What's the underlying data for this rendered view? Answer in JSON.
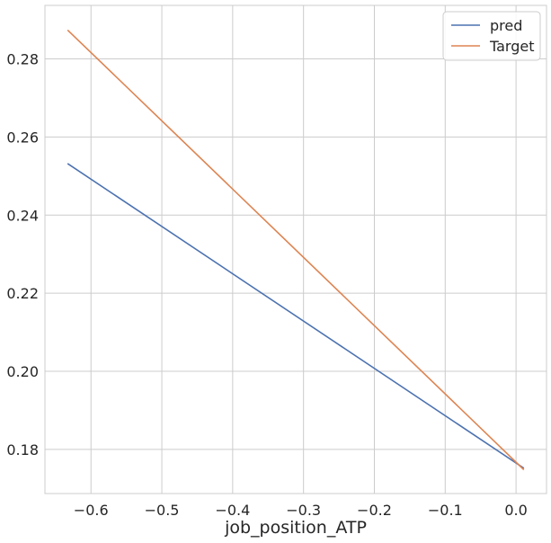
{
  "chart_data": {
    "type": "line",
    "title": "",
    "xlabel": "job_position_ATP",
    "ylabel": "",
    "xlim": [
      -0.665,
      0.043
    ],
    "ylim": [
      0.1687,
      0.2937
    ],
    "xticks": [
      -0.6,
      -0.5,
      -0.4,
      -0.3,
      -0.2,
      -0.1,
      0.0
    ],
    "xtick_labels": [
      "−0.6",
      "−0.5",
      "−0.4",
      "−0.3",
      "−0.2",
      "−0.1",
      "0.0"
    ],
    "yticks": [
      0.18,
      0.2,
      0.22,
      0.24,
      0.26,
      0.28
    ],
    "ytick_labels": [
      "0.18",
      "0.20",
      "0.22",
      "0.24",
      "0.26",
      "0.28"
    ],
    "grid": true,
    "legend_position": "top-right",
    "series": [
      {
        "name": "pred",
        "color": "#4c72b0",
        "x": [
          -0.633,
          0.011
        ],
        "y": [
          0.2532,
          0.1752
        ]
      },
      {
        "name": "Target",
        "color": "#dd8452",
        "x": [
          -0.633,
          0.011
        ],
        "y": [
          0.2874,
          0.1748
        ]
      }
    ]
  }
}
